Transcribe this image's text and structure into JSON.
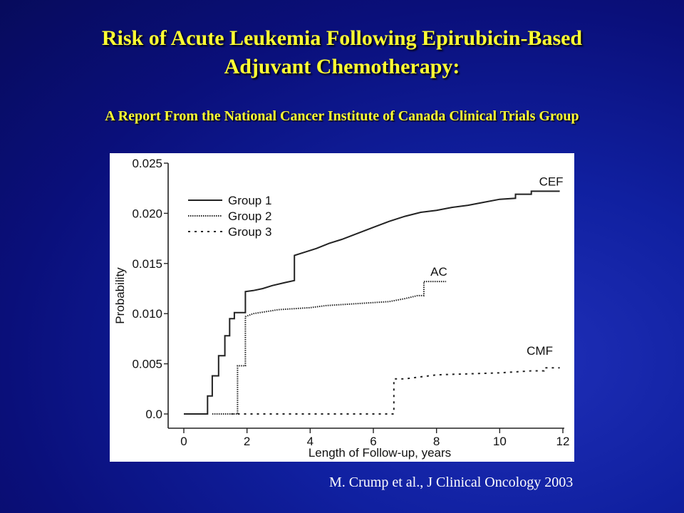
{
  "slide": {
    "title_line1": "Risk of Acute Leukemia Following Epirubicin-Based",
    "title_line2": "Adjuvant Chemotherapy:",
    "subtitle": "A Report From the National Cancer Institute of Canada Clinical Trials Group",
    "citation": "M. Crump et al., J Clinical Oncology 2003"
  },
  "chart_data": {
    "type": "line",
    "title": "",
    "xlabel": "Length of Follow-up, years",
    "ylabel": "Probability",
    "xlim": [
      0,
      12
    ],
    "ylim": [
      0,
      0.025
    ],
    "x_ticks": [
      "0",
      "2",
      "4",
      "6",
      "8",
      "10",
      "12"
    ],
    "y_ticks": [
      "0.0",
      "0.005",
      "0.010",
      "0.015",
      "0.020",
      "0.025"
    ],
    "grid": false,
    "legend_position": "top-left",
    "series": [
      {
        "name": "Group 1",
        "end_label": "CEF",
        "line_style": "solid",
        "steps": [
          [
            0,
            0
          ],
          [
            0.75,
            0
          ],
          [
            0.75,
            0.0018
          ],
          [
            0.9,
            0.0018
          ],
          [
            0.9,
            0.0038
          ],
          [
            1.1,
            0.0038
          ],
          [
            1.1,
            0.0058
          ],
          [
            1.3,
            0.0058
          ],
          [
            1.3,
            0.0078
          ],
          [
            1.45,
            0.0078
          ],
          [
            1.45,
            0.0095
          ],
          [
            1.6,
            0.0095
          ],
          [
            1.6,
            0.0101
          ],
          [
            1.95,
            0.0101
          ],
          [
            1.95,
            0.0122
          ],
          [
            2.2,
            0.0123
          ],
          [
            2.5,
            0.0125
          ],
          [
            2.8,
            0.0128
          ],
          [
            3.2,
            0.0131
          ],
          [
            3.5,
            0.0133
          ],
          [
            3.5,
            0.0158
          ],
          [
            3.8,
            0.0161
          ],
          [
            4.2,
            0.0165
          ],
          [
            4.6,
            0.017
          ],
          [
            5.0,
            0.0174
          ],
          [
            5.5,
            0.018
          ],
          [
            6.0,
            0.0186
          ],
          [
            6.5,
            0.0192
          ],
          [
            7.0,
            0.0197
          ],
          [
            7.5,
            0.0201
          ],
          [
            8.0,
            0.0203
          ],
          [
            8.5,
            0.0206
          ],
          [
            9.0,
            0.0208
          ],
          [
            9.5,
            0.0211
          ],
          [
            10.0,
            0.0214
          ],
          [
            10.5,
            0.0215
          ],
          [
            10.5,
            0.0219
          ],
          [
            11.0,
            0.0219
          ],
          [
            11.0,
            0.0222
          ],
          [
            11.9,
            0.0222
          ]
        ]
      },
      {
        "name": "Group 2",
        "end_label": "AC",
        "line_style": "dotted",
        "steps": [
          [
            0.9,
            0
          ],
          [
            1.7,
            0
          ],
          [
            1.7,
            0.0048
          ],
          [
            1.95,
            0.0048
          ],
          [
            1.95,
            0.0097
          ],
          [
            2.2,
            0.01
          ],
          [
            2.6,
            0.0102
          ],
          [
            3.0,
            0.0104
          ],
          [
            3.5,
            0.0105
          ],
          [
            4.0,
            0.0106
          ],
          [
            4.5,
            0.0108
          ],
          [
            5.0,
            0.0109
          ],
          [
            5.5,
            0.011
          ],
          [
            6.0,
            0.0111
          ],
          [
            6.5,
            0.0112
          ],
          [
            7.0,
            0.0115
          ],
          [
            7.4,
            0.0118
          ],
          [
            7.6,
            0.0118
          ],
          [
            7.6,
            0.0132
          ],
          [
            8.3,
            0.0132
          ]
        ]
      },
      {
        "name": "Group 3",
        "end_label": "CMF",
        "line_style": "dashed",
        "steps": [
          [
            1.5,
            0
          ],
          [
            6.65,
            0
          ],
          [
            6.65,
            0.0035
          ],
          [
            7.0,
            0.0035
          ],
          [
            7.5,
            0.0037
          ],
          [
            8.0,
            0.0039
          ],
          [
            9.0,
            0.004
          ],
          [
            10.0,
            0.0041
          ],
          [
            11.0,
            0.0043
          ],
          [
            11.4,
            0.0043
          ],
          [
            11.4,
            0.0046
          ],
          [
            11.9,
            0.0046
          ]
        ]
      }
    ]
  }
}
